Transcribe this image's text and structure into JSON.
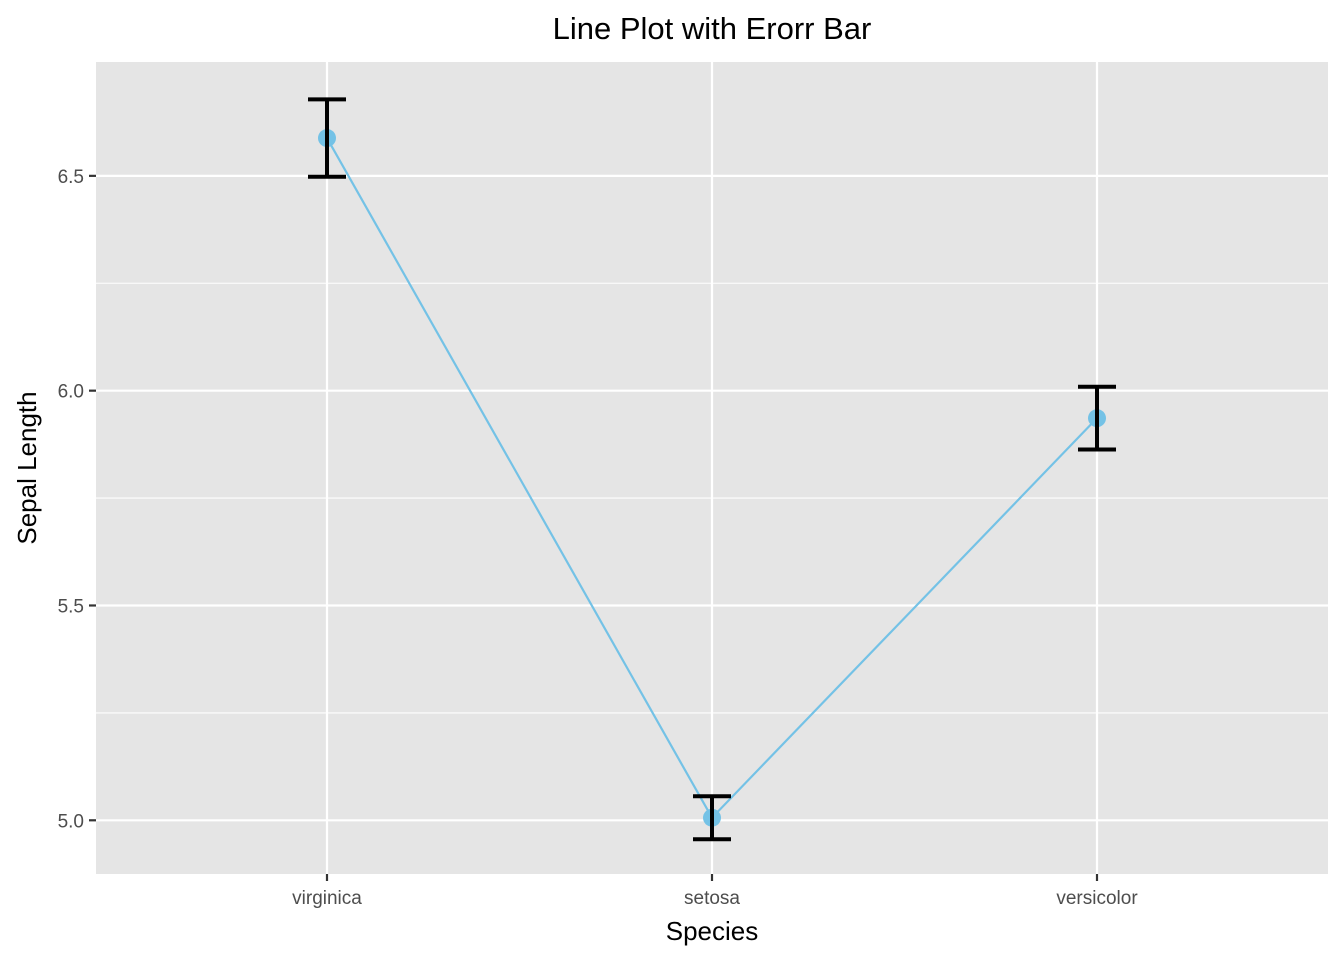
{
  "chart_data": {
    "type": "line",
    "title": "Line Plot with Erorr Bar",
    "xlabel": "Species",
    "ylabel": "Sepal Length",
    "categories": [
      "virginica",
      "setosa",
      "versicolor"
    ],
    "series": [
      {
        "values": [
          6.588,
          5.006,
          5.936
        ],
        "error_lower": [
          6.498,
          4.956,
          5.863
        ],
        "error_upper": [
          6.678,
          5.056,
          6.009
        ]
      }
    ],
    "ylim": [
      4.875,
      6.765
    ],
    "yticks": [
      5.0,
      5.5,
      6.0,
      6.5
    ],
    "ytick_labels": [
      "5.0",
      "5.5",
      "6.0",
      "6.5"
    ],
    "grid": true,
    "colors": {
      "line": "#74c2e6",
      "point": "#74c2e6",
      "errorbar": "#000000",
      "panel_background": "#e5e5e5",
      "grid": "#ffffff"
    }
  }
}
